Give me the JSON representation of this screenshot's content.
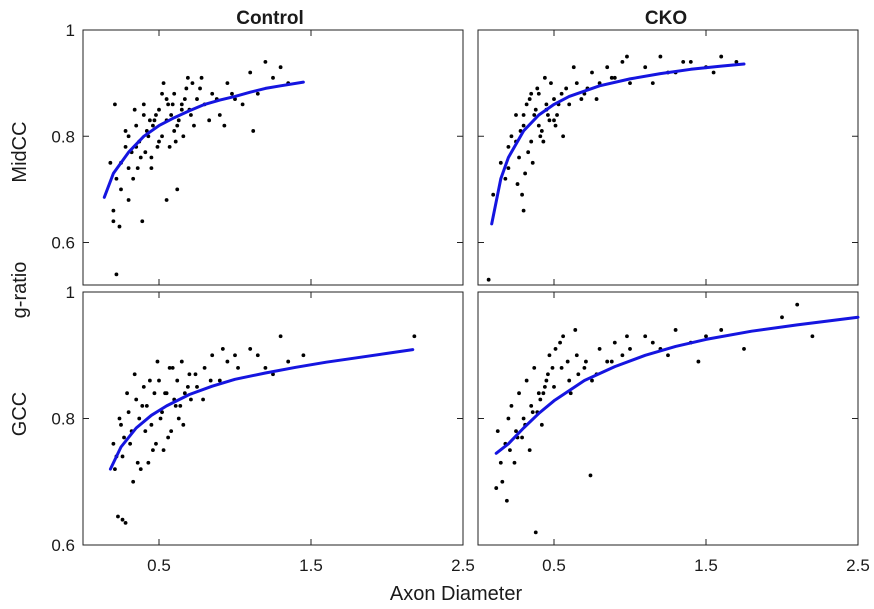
{
  "figure": {
    "column_titles": [
      "Control",
      "CKO"
    ],
    "row_labels": [
      "MidCC",
      "GCC"
    ],
    "shared_ylabel": "g-ratio",
    "shared_xlabel": "Axon Diameter"
  },
  "chart_data": [
    {
      "type": "scatter",
      "title": "Control",
      "ylabel": "MidCC",
      "xlim": [
        0.0,
        2.5
      ],
      "ylim": [
        0.52,
        1.0
      ],
      "xticks": [
        0.5,
        1.5,
        2.5
      ],
      "xtick_labels": [
        "0.5",
        "1.5",
        "2.5"
      ],
      "yticks": [
        0.6,
        0.8,
        1.0
      ],
      "ytick_labels": [
        "0.6",
        "0.8",
        "1"
      ],
      "fit_color": "#1515e0",
      "points_color": "#000000",
      "fit": {
        "x": [
          0.14,
          0.2,
          0.3,
          0.4,
          0.5,
          0.6,
          0.7,
          0.8,
          0.9,
          1.0,
          1.1,
          1.2,
          1.3,
          1.45
        ],
        "y": [
          0.685,
          0.73,
          0.77,
          0.8,
          0.82,
          0.835,
          0.848,
          0.86,
          0.868,
          0.875,
          0.883,
          0.89,
          0.895,
          0.902
        ]
      },
      "points": {
        "x": [
          0.2,
          0.22,
          0.25,
          0.28,
          0.3,
          0.32,
          0.35,
          0.37,
          0.4,
          0.42,
          0.45,
          0.47,
          0.5,
          0.52,
          0.55,
          0.58,
          0.6,
          0.62,
          0.65,
          0.68,
          0.7,
          0.72,
          0.75,
          0.78,
          0.8,
          0.85,
          0.9,
          0.95,
          1.0,
          1.1,
          1.15,
          1.2,
          1.25,
          1.3,
          1.35,
          0.2,
          0.25,
          0.3,
          0.35,
          0.4,
          0.45,
          0.5,
          0.55,
          0.6,
          0.65,
          0.3,
          0.33,
          0.38,
          0.43,
          0.48,
          0.52,
          0.57,
          0.63,
          0.67,
          0.73,
          0.28,
          0.34,
          0.41,
          0.46,
          0.53,
          0.59,
          0.66,
          0.71,
          0.77,
          0.83,
          0.88,
          0.93,
          0.98,
          1.05,
          0.36,
          0.44,
          0.49,
          0.56,
          0.61,
          0.69,
          0.22,
          0.24,
          0.21,
          0.39,
          0.55,
          0.62,
          1.12,
          0.18
        ],
        "y": [
          0.64,
          0.72,
          0.75,
          0.78,
          0.8,
          0.77,
          0.82,
          0.79,
          0.84,
          0.81,
          0.76,
          0.83,
          0.85,
          0.8,
          0.87,
          0.84,
          0.88,
          0.82,
          0.86,
          0.89,
          0.85,
          0.9,
          0.87,
          0.91,
          0.86,
          0.88,
          0.84,
          0.9,
          0.87,
          0.92,
          0.88,
          0.94,
          0.91,
          0.93,
          0.9,
          0.66,
          0.7,
          0.74,
          0.78,
          0.86,
          0.74,
          0.79,
          0.83,
          0.81,
          0.85,
          0.68,
          0.72,
          0.76,
          0.8,
          0.84,
          0.88,
          0.78,
          0.83,
          0.87,
          0.82,
          0.81,
          0.85,
          0.77,
          0.82,
          0.9,
          0.86,
          0.8,
          0.84,
          0.89,
          0.83,
          0.87,
          0.82,
          0.88,
          0.86,
          0.74,
          0.83,
          0.78,
          0.86,
          0.79,
          0.91,
          0.54,
          0.63,
          0.86,
          0.64,
          0.68,
          0.7,
          0.81,
          0.75
        ]
      }
    },
    {
      "type": "scatter",
      "title": "CKO",
      "ylabel": "",
      "xlim": [
        0.0,
        2.5
      ],
      "ylim": [
        0.52,
        1.0
      ],
      "xticks": [
        0.5,
        1.5,
        2.5
      ],
      "xtick_labels": [
        "0.5",
        "1.5",
        "2.5"
      ],
      "yticks": [
        0.6,
        0.8,
        1.0
      ],
      "ytick_labels": [
        "",
        "",
        ""
      ],
      "fit_color": "#1515e0",
      "points_color": "#000000",
      "fit": {
        "x": [
          0.09,
          0.15,
          0.2,
          0.3,
          0.4,
          0.5,
          0.6,
          0.8,
          1.0,
          1.2,
          1.4,
          1.6,
          1.75
        ],
        "y": [
          0.635,
          0.72,
          0.76,
          0.81,
          0.84,
          0.86,
          0.875,
          0.895,
          0.908,
          0.918,
          0.926,
          0.932,
          0.936
        ]
      },
      "points": {
        "x": [
          0.1,
          0.15,
          0.18,
          0.2,
          0.22,
          0.25,
          0.27,
          0.3,
          0.32,
          0.35,
          0.37,
          0.4,
          0.42,
          0.45,
          0.47,
          0.5,
          0.52,
          0.55,
          0.6,
          0.65,
          0.7,
          0.75,
          0.8,
          0.85,
          0.9,
          0.95,
          1.0,
          1.1,
          1.2,
          1.3,
          1.4,
          1.5,
          1.6,
          1.7,
          0.2,
          0.25,
          0.3,
          0.35,
          0.4,
          0.45,
          0.5,
          0.28,
          0.33,
          0.38,
          0.43,
          0.48,
          0.53,
          0.58,
          0.63,
          0.68,
          0.26,
          0.31,
          0.36,
          0.41,
          0.46,
          0.51,
          0.56,
          0.72,
          0.78,
          0.88,
          0.98,
          1.15,
          1.25,
          1.35,
          1.55,
          0.3,
          0.29,
          0.34,
          0.39,
          0.44,
          0.07
        ],
        "y": [
          0.69,
          0.75,
          0.72,
          0.78,
          0.8,
          0.84,
          0.76,
          0.82,
          0.86,
          0.79,
          0.84,
          0.88,
          0.81,
          0.85,
          0.83,
          0.87,
          0.84,
          0.88,
          0.86,
          0.9,
          0.88,
          0.92,
          0.9,
          0.93,
          0.91,
          0.94,
          0.9,
          0.93,
          0.95,
          0.92,
          0.94,
          0.93,
          0.95,
          0.94,
          0.74,
          0.79,
          0.84,
          0.88,
          0.82,
          0.86,
          0.83,
          0.81,
          0.77,
          0.85,
          0.79,
          0.9,
          0.86,
          0.89,
          0.93,
          0.87,
          0.71,
          0.73,
          0.75,
          0.8,
          0.84,
          0.82,
          0.8,
          0.89,
          0.87,
          0.91,
          0.95,
          0.9,
          0.92,
          0.94,
          0.92,
          0.66,
          0.69,
          0.87,
          0.89,
          0.91,
          0.53
        ]
      }
    },
    {
      "type": "scatter",
      "title": "",
      "ylabel": "GCC",
      "xlim": [
        0.0,
        2.5
      ],
      "ylim": [
        0.6,
        1.0
      ],
      "xticks": [
        0.5,
        1.5,
        2.5
      ],
      "xtick_labels": [
        "0.5",
        "1.5",
        "2.5"
      ],
      "yticks": [
        0.6,
        0.8,
        1.0
      ],
      "ytick_labels": [
        "0.6",
        "0.8",
        "1"
      ],
      "fit_color": "#1515e0",
      "points_color": "#000000",
      "fit": {
        "x": [
          0.18,
          0.25,
          0.35,
          0.45,
          0.55,
          0.7,
          0.85,
          1.0,
          1.2,
          1.4,
          1.6,
          1.8,
          2.0,
          2.17
        ],
        "y": [
          0.72,
          0.755,
          0.785,
          0.805,
          0.82,
          0.838,
          0.851,
          0.862,
          0.872,
          0.881,
          0.889,
          0.896,
          0.903,
          0.909
        ]
      },
      "points": {
        "x": [
          0.2,
          0.22,
          0.25,
          0.27,
          0.3,
          0.32,
          0.35,
          0.37,
          0.4,
          0.42,
          0.45,
          0.47,
          0.5,
          0.52,
          0.55,
          0.57,
          0.6,
          0.62,
          0.65,
          0.67,
          0.7,
          0.75,
          0.8,
          0.85,
          0.9,
          0.95,
          1.0,
          1.1,
          1.2,
          1.3,
          1.45,
          2.18,
          0.21,
          0.26,
          0.31,
          0.36,
          0.41,
          0.46,
          0.51,
          0.56,
          0.61,
          0.66,
          0.71,
          0.24,
          0.29,
          0.34,
          0.39,
          0.44,
          0.49,
          0.54,
          0.59,
          0.64,
          0.69,
          0.74,
          0.79,
          0.84,
          0.92,
          1.02,
          1.15,
          0.23,
          0.26,
          0.28,
          0.33,
          0.38,
          0.43,
          0.48,
          0.53,
          0.58,
          0.63,
          1.25,
          1.35
        ],
        "y": [
          0.76,
          0.74,
          0.79,
          0.77,
          0.81,
          0.78,
          0.83,
          0.8,
          0.85,
          0.82,
          0.79,
          0.84,
          0.86,
          0.81,
          0.84,
          0.88,
          0.83,
          0.86,
          0.89,
          0.84,
          0.87,
          0.85,
          0.88,
          0.9,
          0.86,
          0.89,
          0.9,
          0.91,
          0.88,
          0.93,
          0.9,
          0.93,
          0.72,
          0.74,
          0.76,
          0.73,
          0.78,
          0.75,
          0.8,
          0.77,
          0.82,
          0.79,
          0.83,
          0.8,
          0.84,
          0.87,
          0.82,
          0.86,
          0.89,
          0.84,
          0.88,
          0.82,
          0.85,
          0.87,
          0.83,
          0.86,
          0.91,
          0.88,
          0.9,
          0.645,
          0.64,
          0.635,
          0.7,
          0.72,
          0.73,
          0.76,
          0.75,
          0.78,
          0.8,
          0.87,
          0.89
        ]
      }
    },
    {
      "type": "scatter",
      "title": "",
      "ylabel": "",
      "xlim": [
        0.0,
        2.5
      ],
      "ylim": [
        0.6,
        1.0
      ],
      "xticks": [
        0.5,
        1.5,
        2.5
      ],
      "xtick_labels": [
        "0.5",
        "1.5",
        "2.5"
      ],
      "yticks": [
        0.6,
        0.8,
        1.0
      ],
      "ytick_labels": [
        "",
        "",
        ""
      ],
      "fit_color": "#1515e0",
      "points_color": "#000000",
      "fit": {
        "x": [
          0.12,
          0.2,
          0.3,
          0.4,
          0.5,
          0.7,
          0.9,
          1.1,
          1.3,
          1.5,
          1.8,
          2.1,
          2.5
        ],
        "y": [
          0.745,
          0.76,
          0.785,
          0.808,
          0.828,
          0.86,
          0.882,
          0.9,
          0.914,
          0.925,
          0.938,
          0.948,
          0.96
        ]
      },
      "points": {
        "x": [
          0.12,
          0.15,
          0.18,
          0.2,
          0.22,
          0.25,
          0.27,
          0.3,
          0.32,
          0.35,
          0.37,
          0.4,
          0.42,
          0.45,
          0.47,
          0.5,
          0.55,
          0.6,
          0.65,
          0.7,
          0.75,
          0.8,
          0.85,
          0.9,
          0.95,
          1.0,
          1.1,
          1.2,
          1.3,
          1.4,
          1.5,
          1.6,
          1.75,
          2.0,
          2.1,
          2.2,
          0.16,
          0.21,
          0.26,
          0.31,
          0.36,
          0.41,
          0.46,
          0.51,
          0.56,
          0.61,
          0.66,
          0.71,
          0.24,
          0.29,
          0.34,
          0.39,
          0.44,
          0.49,
          0.54,
          0.59,
          0.64,
          0.74,
          0.78,
          0.88,
          0.98,
          1.15,
          1.25,
          1.45,
          0.13,
          0.19,
          0.38,
          0.43
        ],
        "y": [
          0.69,
          0.73,
          0.76,
          0.8,
          0.82,
          0.78,
          0.84,
          0.8,
          0.86,
          0.82,
          0.88,
          0.84,
          0.79,
          0.86,
          0.9,
          0.85,
          0.88,
          0.86,
          0.9,
          0.88,
          0.86,
          0.91,
          0.89,
          0.92,
          0.9,
          0.91,
          0.93,
          0.91,
          0.94,
          0.92,
          0.93,
          0.94,
          0.91,
          0.96,
          0.98,
          0.93,
          0.7,
          0.75,
          0.77,
          0.79,
          0.81,
          0.83,
          0.87,
          0.91,
          0.93,
          0.84,
          0.87,
          0.89,
          0.73,
          0.77,
          0.75,
          0.81,
          0.85,
          0.88,
          0.92,
          0.89,
          0.94,
          0.71,
          0.87,
          0.89,
          0.93,
          0.92,
          0.9,
          0.89,
          0.78,
          0.67,
          0.62,
          0.84
        ]
      }
    }
  ]
}
